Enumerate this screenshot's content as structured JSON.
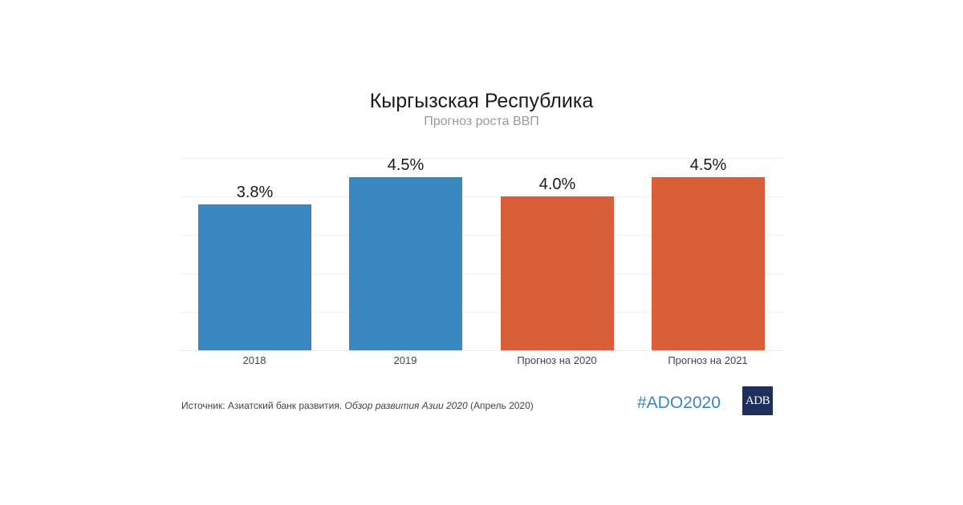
{
  "header": {
    "title": "Кыргызская Республика",
    "subtitle": "Прогноз роста ВВП"
  },
  "footer": {
    "source_prefix": "Источник: Азиатский банк развития. ",
    "source_italic": "Обзор развития Азии 2020",
    "source_suffix": " (Апрель 2020)",
    "hashtag": "#ADO2020",
    "logo_text": "ADB"
  },
  "colors": {
    "actual": "#3a86c0",
    "forecast": "#d95f3a",
    "hashtag": "#3a86c0",
    "logo_bg": "#1f2f5c"
  },
  "chart_data": {
    "type": "bar",
    "title": "Кыргызская Республика",
    "subtitle": "Прогноз роста ВВП",
    "categories": [
      "2018",
      "2019",
      "Прогноз на 2020",
      "Прогноз на 2021"
    ],
    "values": [
      3.8,
      4.5,
      4.0,
      4.5
    ],
    "value_labels": [
      "3.8%",
      "4.5%",
      "4.0%",
      "4.5%"
    ],
    "bar_colors": [
      "#3a86c0",
      "#3a86c0",
      "#d95f3a",
      "#d95f3a"
    ],
    "xlabel": "",
    "ylabel": "",
    "ylim": [
      0,
      5
    ],
    "grid": true,
    "y_axis_labels_visible": false,
    "legend": null
  }
}
